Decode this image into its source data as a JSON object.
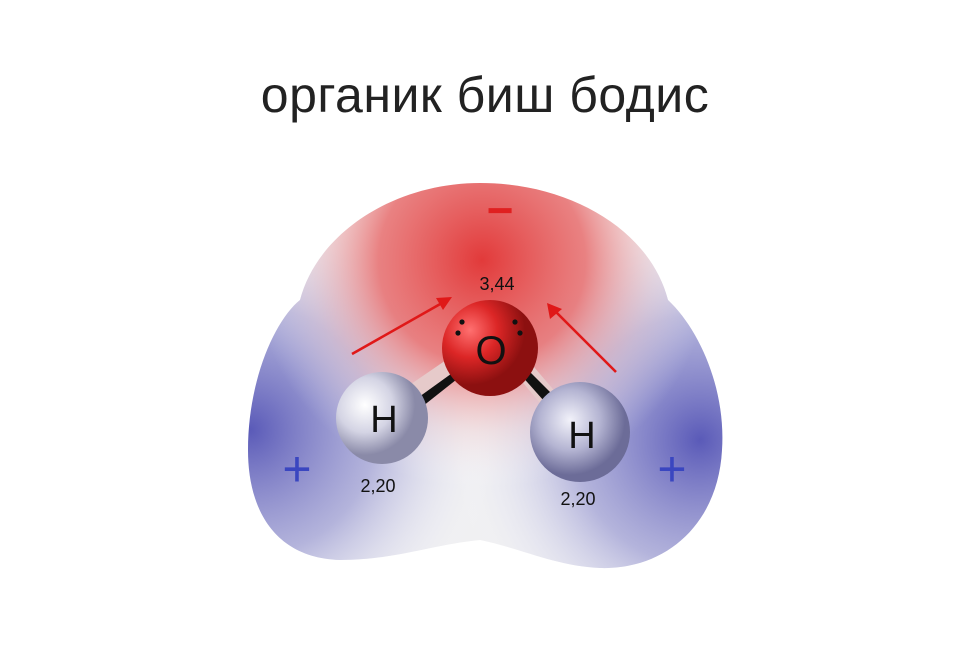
{
  "title": "органик биш бодис",
  "molecule": {
    "oxygen": {
      "symbol": "O",
      "electronegativity": "3,44"
    },
    "hydrogen_left": {
      "symbol": "H",
      "electronegativity": "2,20"
    },
    "hydrogen_right": {
      "symbol": "H",
      "electronegativity": "2,20"
    },
    "charges": {
      "negative": "−",
      "positive_left": "+",
      "positive_right": "+"
    }
  },
  "colors": {
    "negative_region": "#e03030",
    "positive_region": "#5a5ab8",
    "arrow": "#e01818",
    "oxygen_atom": "#d41e1e",
    "hydrogen_atom": "#c8c8d8",
    "positive_sign": "#3a46c0",
    "negative_sign": "#e02020"
  }
}
